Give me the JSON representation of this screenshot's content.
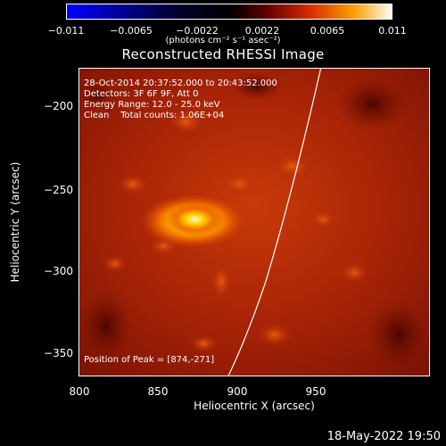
{
  "colorbar": {
    "ticks": [
      "−0.011",
      "−0.0065",
      "−0.0022",
      "0.0022",
      "0.0065",
      "0.011"
    ],
    "units": "(photons cm⁻² s⁻¹ asec⁻²)"
  },
  "title": "Reconstructed RHESSI Image",
  "info": {
    "line1": "28-Oct-2014 20:37:52.000 to 20:43:52.000",
    "line2": "Detectors: 3F 6F 9F, Att 0",
    "line3": "Energy Range: 12.0 - 25.0 keV",
    "line4": "Clean    Total counts: 1.06E+04"
  },
  "peak": "Position of Peak = [874,-271]",
  "axes": {
    "xlabel": "Heliocentric X (arcsec)",
    "ylabel": "Heliocentric Y (arcsec)",
    "xticks": [
      "800",
      "850",
      "900",
      "950"
    ],
    "yticks": [
      "−200",
      "−250",
      "−300",
      "−350"
    ]
  },
  "footer": {
    "date": "18-May-2022 19:50"
  }
}
